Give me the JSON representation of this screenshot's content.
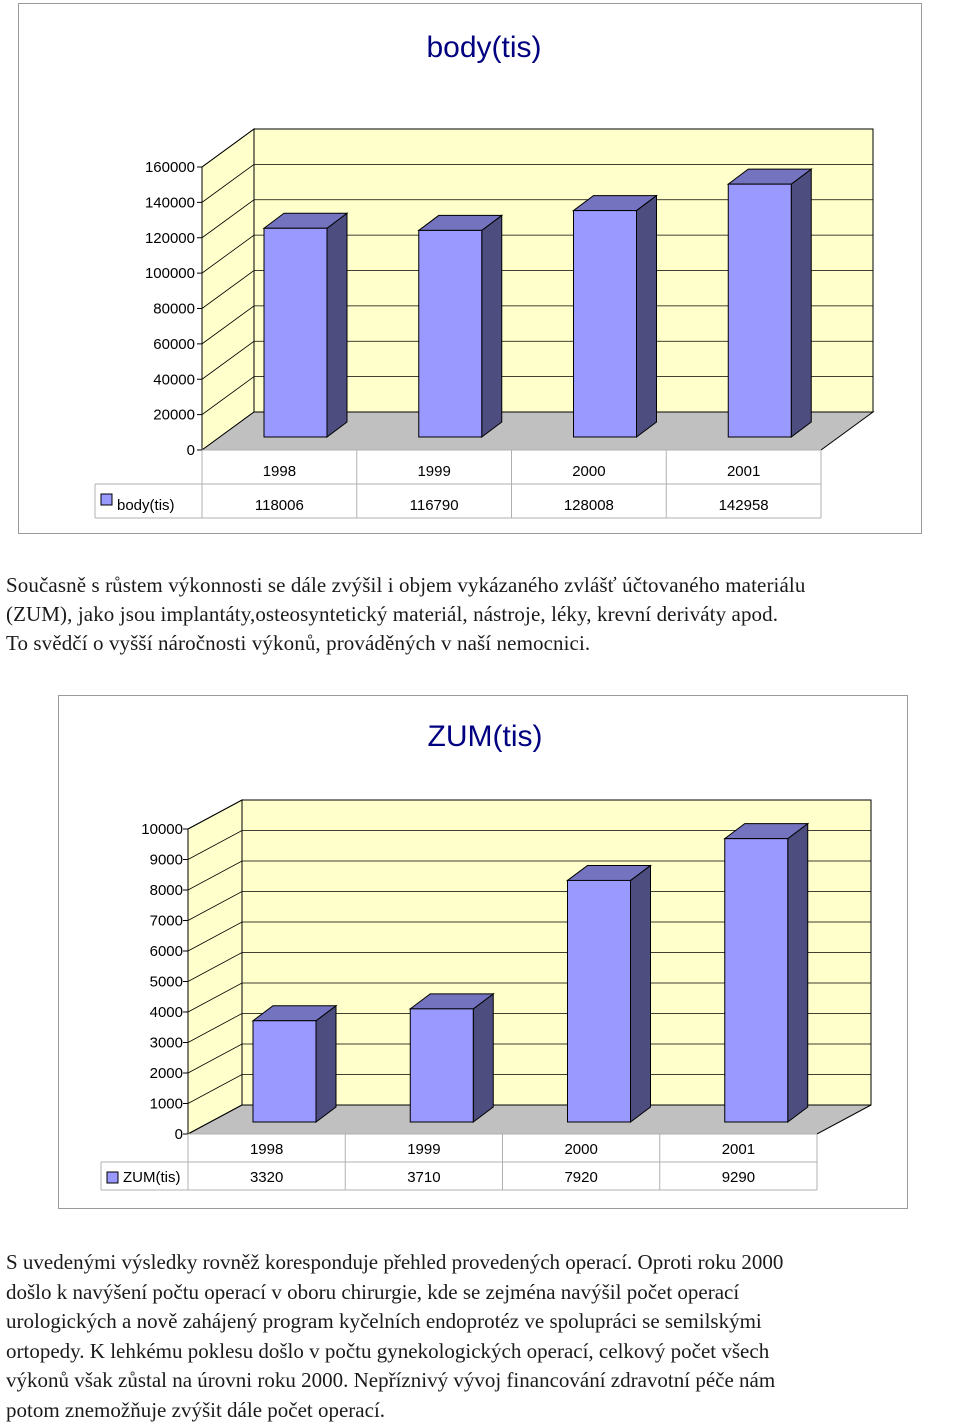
{
  "chart_data": [
    {
      "type": "bar",
      "title": "body(tis)",
      "categories": [
        "1998",
        "1999",
        "2000",
        "2001"
      ],
      "series": [
        {
          "name": "body(tis)",
          "values": [
            118006,
            116790,
            128008,
            142958
          ]
        }
      ],
      "yticks": [
        "0",
        "20000",
        "40000",
        "60000",
        "80000",
        "100000",
        "120000",
        "140000",
        "160000"
      ],
      "ylim": [
        0,
        160000
      ],
      "table_values": [
        "118006",
        "116790",
        "128008",
        "142958"
      ],
      "style": "3d",
      "bar_color": "#9999ff",
      "wall_color": "#ffffcc",
      "title_color": "#000080",
      "legend": "data-table"
    },
    {
      "type": "bar",
      "title": "ZUM(tis)",
      "categories": [
        "1998",
        "1999",
        "2000",
        "2001"
      ],
      "series": [
        {
          "name": "ZUM(tis)",
          "values": [
            3320,
            3710,
            7920,
            9290
          ]
        }
      ],
      "yticks": [
        "0",
        "1000",
        "2000",
        "3000",
        "4000",
        "5000",
        "6000",
        "7000",
        "8000",
        "9000",
        "10000"
      ],
      "ylim": [
        0,
        10000
      ],
      "table_values": [
        "3320",
        "3710",
        "7920",
        "9290"
      ],
      "style": "3d",
      "bar_color": "#9999ff",
      "wall_color": "#ffffcc",
      "title_color": "#000080",
      "legend": "data-table"
    }
  ],
  "text": {
    "para1": [
      "Současně s růstem výkonnosti se dále zvýšil i objem vykázaného zvlášť účtovaného materiálu",
      "(ZUM), jako jsou implantáty,osteosyntetický materiál, nástroje, léky, krevní deriváty apod.",
      "To svědčí o vyšší  náročnosti  výkonů, prováděných v naší nemocnici."
    ],
    "para2": [
      "S uvedenými výsledky rovněž koresponduje přehled provedených  operací. Oproti roku 2000",
      "došlo k navýšení počtu operací v oboru chirurgie, kde se zejména navýšil počet operací",
      "urologických a nově zahájený program kyčelních endoprotéz ve spolupráci se semilskými",
      "ortopedy. K lehkému poklesu došlo v počtu gynekologických operací, celkový počet všech",
      "výkonů však zůstal na úrovni roku 2000. Nepříznivý vývoj financování zdravotní péče nám",
      "potom znemožňuje zvýšit dále počet operací."
    ]
  }
}
